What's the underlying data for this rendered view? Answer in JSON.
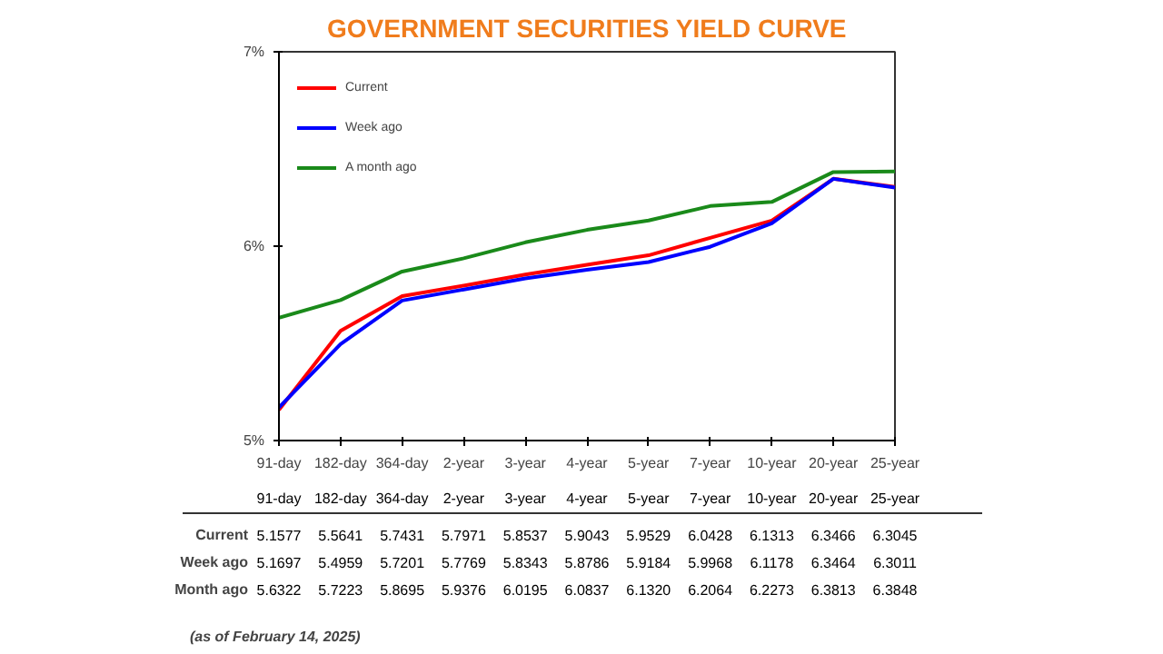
{
  "chart_data": {
    "type": "line",
    "title": "GOVERNMENT SECURITIES YIELD CURVE",
    "categories": [
      "91-day",
      "182-day",
      "364-day",
      "2-year",
      "3-year",
      "4-year",
      "5-year",
      "7-year",
      "10-year",
      "20-year",
      "25-year"
    ],
    "series": [
      {
        "name": "Current",
        "color": "#ff0000",
        "values": [
          5.1577,
          5.5641,
          5.7431,
          5.7971,
          5.8537,
          5.9043,
          5.9529,
          6.0428,
          6.1313,
          6.3466,
          6.3045
        ],
        "value_labels": [
          "5.1577",
          "5.5641",
          "5.7431",
          "5.7971",
          "5.8537",
          "5.9043",
          "5.9529",
          "6.0428",
          "6.1313",
          "6.3466",
          "6.3045"
        ]
      },
      {
        "name": "Week ago",
        "color": "#0000ff",
        "values": [
          5.1697,
          5.4959,
          5.7201,
          5.7769,
          5.8343,
          5.8786,
          5.9184,
          5.9968,
          6.1178,
          6.3464,
          6.3011
        ],
        "value_labels": [
          "5.1697",
          "5.4959",
          "5.7201",
          "5.7769",
          "5.8343",
          "5.8786",
          "5.9184",
          "5.9968",
          "6.1178",
          "6.3464",
          "6.3011"
        ]
      },
      {
        "name": "A month ago",
        "color": "#1a8a1a",
        "values": [
          5.6322,
          5.7223,
          5.8695,
          5.9376,
          6.0195,
          6.0837,
          6.132,
          6.2064,
          6.2273,
          6.3813,
          6.3848
        ],
        "value_labels": [
          "5.6322",
          "5.7223",
          "5.8695",
          "5.9376",
          "6.0195",
          "6.0837",
          "6.1320",
          "6.2064",
          "6.2273",
          "6.3813",
          "6.3848"
        ]
      }
    ],
    "ylim": [
      5,
      7
    ],
    "yticks": [
      {
        "value": 5,
        "label": "5%"
      },
      {
        "value": 6,
        "label": "6%"
      },
      {
        "value": 7,
        "label": "7%"
      }
    ],
    "grid": false,
    "legend": "top left",
    "marker": "none",
    "line_style": "solid",
    "annotations": [
      "Current",
      "Week ago",
      "Month ago",
      "(as of February 14, 2025)"
    ]
  }
}
